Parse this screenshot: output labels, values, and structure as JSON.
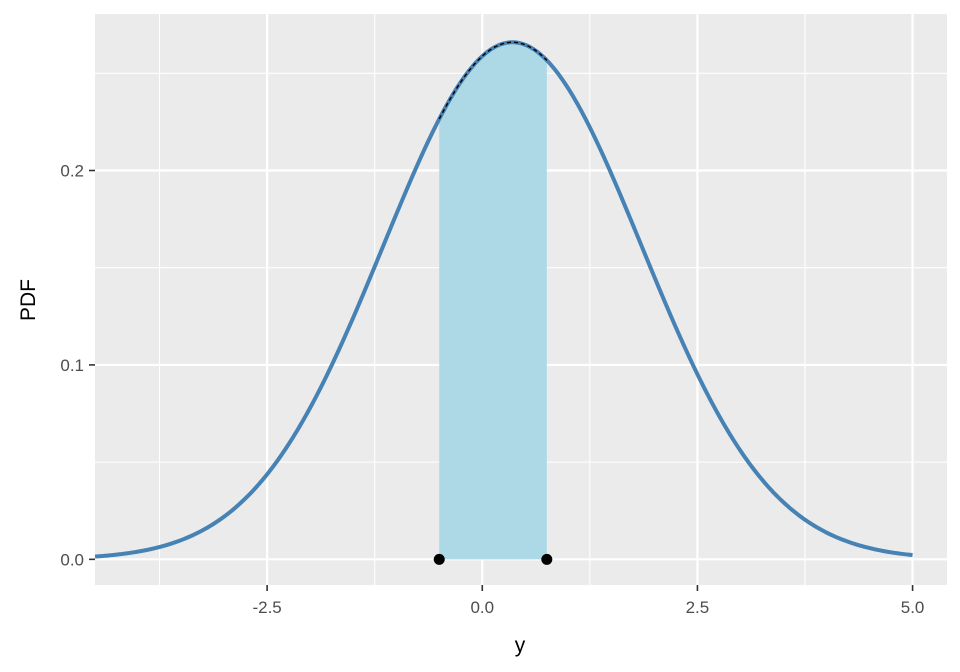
{
  "chart_data": {
    "type": "area",
    "xlabel": "y",
    "ylabel": "PDF",
    "xlim": [
      -4.5,
      5.4
    ],
    "ylim": [
      -0.0132,
      0.2805
    ],
    "x_ticks": [
      -2.5,
      0.0,
      2.5,
      5.0
    ],
    "x_tick_labels": [
      "-2.5",
      "0.0",
      "2.5",
      "5.0"
    ],
    "y_ticks": [
      0.0,
      0.1,
      0.2
    ],
    "y_tick_labels": [
      "0.0",
      "0.1",
      "0.2"
    ],
    "grid": true,
    "curve": {
      "distribution": "normal",
      "mean": 0.35,
      "sd": 1.5,
      "x_range": [
        -4.5,
        5.0
      ],
      "color": "#4682b4"
    },
    "shaded_region": {
      "x_start": -0.5,
      "x_end": 0.75,
      "color": "#add8e6"
    },
    "points": [
      {
        "x": -0.5,
        "y": 0.0
      },
      {
        "x": 0.75,
        "y": 0.0
      }
    ],
    "colors": {
      "panel_background": "#ebebeb",
      "grid": "#ffffff",
      "points": "#000000",
      "dashed_outline": "#000000"
    }
  }
}
